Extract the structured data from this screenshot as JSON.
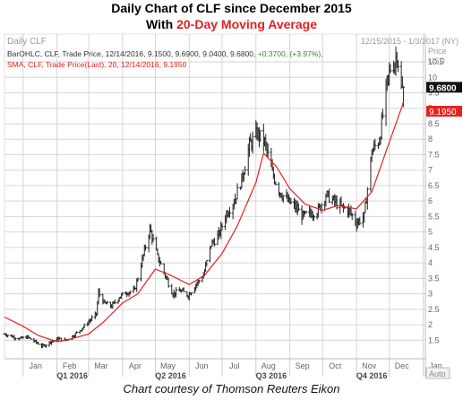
{
  "title": {
    "line1": "Daily Chart of CLF since December 2015",
    "line2_prefix": "With ",
    "line2_highlight": "20-Day Moving Average"
  },
  "caption": "Chart courtesy of Thomson Reuters Eikon",
  "chart_header": {
    "name": "Daily CLF",
    "date_range": "12/15/2015 - 1/3/2017 (NY)",
    "price_axis_label_1": "Price",
    "price_axis_label_2": "USD",
    "bar_legend_text": "BarOHLC, CLF, Trade Price, 12/14/2016, 9.1500, 9.6900, 9.0400, 9.6800, ",
    "bar_legend_change": "+0.3700, (+3.97%),",
    "sma_legend_text": "SMA, CLF, Trade Price(Last), 20, 12/14/2016, 9.1950",
    "last_price_tag": "9.6800",
    "sma_tag": "9.1950",
    "auto_label": "Auto"
  },
  "colors": {
    "price_bars": "#222222",
    "sma_line": "#e8201c",
    "positive_change": "#2e8b2e",
    "grid": "#d6d6d6",
    "title_highlight": "#e02020"
  },
  "chart_data": {
    "type": "line",
    "title": "Daily Chart of CLF since December 2015",
    "subtitle": "With 20-Day Moving Average",
    "xlabel": "",
    "ylabel": "Price USD",
    "ylim": [
      0.9,
      11.4
    ],
    "y_ticks": [
      1.5,
      2,
      2.5,
      3,
      3.5,
      4,
      4.5,
      5,
      5.5,
      6,
      6.5,
      7,
      7.5,
      8,
      8.5,
      9,
      9.5,
      10,
      10.5
    ],
    "x_month_ticks": [
      {
        "label": "Jan",
        "date": "2016-01-01"
      },
      {
        "label": "Feb",
        "date": "2016-02-01"
      },
      {
        "label": "Mar",
        "date": "2016-03-01"
      },
      {
        "label": "Apr",
        "date": "2016-04-01"
      },
      {
        "label": "May",
        "date": "2016-05-01"
      },
      {
        "label": "Jun",
        "date": "2016-06-01"
      },
      {
        "label": "Jul",
        "date": "2016-07-01"
      },
      {
        "label": "Aug",
        "date": "2016-08-01"
      },
      {
        "label": "Sep",
        "date": "2016-09-01"
      },
      {
        "label": "Oct",
        "date": "2016-10-01"
      },
      {
        "label": "Nov",
        "date": "2016-11-01"
      },
      {
        "label": "Dec",
        "date": "2016-12-01"
      },
      {
        "label": "Jan",
        "date": "2017-01-01"
      }
    ],
    "x_quarter_labels": [
      {
        "label": "Q1 2016",
        "date": "2016-02-15"
      },
      {
        "label": "Q2 2016",
        "date": "2016-05-15"
      },
      {
        "label": "Q3 2016",
        "date": "2016-08-15"
      },
      {
        "label": "Q4 2016",
        "date": "2016-11-15"
      }
    ],
    "x_start": "2015-12-15",
    "x_end": "2017-01-03",
    "series": [
      {
        "name": "BarOHLC, CLF, Trade Price",
        "style": "ohlc",
        "points": [
          {
            "x": "2015-12-15",
            "y": 1.7
          },
          {
            "x": "2015-12-22",
            "y": 1.62
          },
          {
            "x": "2015-12-29",
            "y": 1.55
          },
          {
            "x": "2016-01-05",
            "y": 1.6
          },
          {
            "x": "2016-01-12",
            "y": 1.45
          },
          {
            "x": "2016-01-19",
            "y": 1.3
          },
          {
            "x": "2016-01-26",
            "y": 1.45
          },
          {
            "x": "2016-02-02",
            "y": 1.55
          },
          {
            "x": "2016-02-09",
            "y": 1.5
          },
          {
            "x": "2016-02-16",
            "y": 1.65
          },
          {
            "x": "2016-02-23",
            "y": 1.85
          },
          {
            "x": "2016-03-01",
            "y": 2.1
          },
          {
            "x": "2016-03-08",
            "y": 2.35
          },
          {
            "x": "2016-03-10",
            "y": 3.05
          },
          {
            "x": "2016-03-15",
            "y": 2.7
          },
          {
            "x": "2016-03-22",
            "y": 2.6
          },
          {
            "x": "2016-03-29",
            "y": 2.9
          },
          {
            "x": "2016-04-05",
            "y": 3.05
          },
          {
            "x": "2016-04-12",
            "y": 3.1
          },
          {
            "x": "2016-04-19",
            "y": 4.1
          },
          {
            "x": "2016-04-26",
            "y": 5.1
          },
          {
            "x": "2016-05-03",
            "y": 4.2
          },
          {
            "x": "2016-05-10",
            "y": 3.6
          },
          {
            "x": "2016-05-17",
            "y": 3.0
          },
          {
            "x": "2016-05-24",
            "y": 3.1
          },
          {
            "x": "2016-05-31",
            "y": 2.95
          },
          {
            "x": "2016-06-07",
            "y": 3.3
          },
          {
            "x": "2016-06-14",
            "y": 3.6
          },
          {
            "x": "2016-06-21",
            "y": 4.6
          },
          {
            "x": "2016-06-28",
            "y": 4.9
          },
          {
            "x": "2016-07-05",
            "y": 5.6
          },
          {
            "x": "2016-07-12",
            "y": 6.0
          },
          {
            "x": "2016-07-19",
            "y": 6.7
          },
          {
            "x": "2016-07-26",
            "y": 7.8
          },
          {
            "x": "2016-08-02",
            "y": 8.2
          },
          {
            "x": "2016-08-09",
            "y": 7.9
          },
          {
            "x": "2016-08-16",
            "y": 6.9
          },
          {
            "x": "2016-08-23",
            "y": 6.3
          },
          {
            "x": "2016-08-30",
            "y": 6.0
          },
          {
            "x": "2016-09-06",
            "y": 5.8
          },
          {
            "x": "2016-09-13",
            "y": 5.5
          },
          {
            "x": "2016-09-20",
            "y": 5.6
          },
          {
            "x": "2016-09-27",
            "y": 5.7
          },
          {
            "x": "2016-10-04",
            "y": 6.2
          },
          {
            "x": "2016-10-11",
            "y": 6.0
          },
          {
            "x": "2016-10-18",
            "y": 5.8
          },
          {
            "x": "2016-10-25",
            "y": 5.7
          },
          {
            "x": "2016-11-01",
            "y": 5.3
          },
          {
            "x": "2016-11-08",
            "y": 5.5
          },
          {
            "x": "2016-11-15",
            "y": 7.6
          },
          {
            "x": "2016-11-22",
            "y": 8.0
          },
          {
            "x": "2016-11-29",
            "y": 9.8
          },
          {
            "x": "2016-12-02",
            "y": 10.3
          },
          {
            "x": "2016-12-06",
            "y": 10.5
          },
          {
            "x": "2016-12-08",
            "y": 10.8
          },
          {
            "x": "2016-12-12",
            "y": 9.6
          },
          {
            "x": "2016-12-14",
            "y": 9.68
          }
        ]
      },
      {
        "name": "SMA, CLF, Trade Price(Last), 20",
        "style": "line",
        "points": [
          {
            "x": "2015-12-15",
            "y": 2.25
          },
          {
            "x": "2016-01-01",
            "y": 1.95
          },
          {
            "x": "2016-01-15",
            "y": 1.65
          },
          {
            "x": "2016-02-01",
            "y": 1.45
          },
          {
            "x": "2016-02-15",
            "y": 1.55
          },
          {
            "x": "2016-03-01",
            "y": 1.7
          },
          {
            "x": "2016-03-15",
            "y": 2.1
          },
          {
            "x": "2016-04-01",
            "y": 2.7
          },
          {
            "x": "2016-04-15",
            "y": 3.0
          },
          {
            "x": "2016-05-01",
            "y": 3.8
          },
          {
            "x": "2016-05-15",
            "y": 3.6
          },
          {
            "x": "2016-06-01",
            "y": 3.3
          },
          {
            "x": "2016-06-15",
            "y": 3.6
          },
          {
            "x": "2016-07-01",
            "y": 4.3
          },
          {
            "x": "2016-07-15",
            "y": 5.2
          },
          {
            "x": "2016-08-01",
            "y": 6.6
          },
          {
            "x": "2016-08-08",
            "y": 7.55
          },
          {
            "x": "2016-08-20",
            "y": 7.1
          },
          {
            "x": "2016-09-01",
            "y": 6.4
          },
          {
            "x": "2016-09-15",
            "y": 5.9
          },
          {
            "x": "2016-10-01",
            "y": 5.7
          },
          {
            "x": "2016-10-15",
            "y": 5.85
          },
          {
            "x": "2016-11-01",
            "y": 5.75
          },
          {
            "x": "2016-11-15",
            "y": 6.3
          },
          {
            "x": "2016-12-01",
            "y": 7.9
          },
          {
            "x": "2016-12-14",
            "y": 9.195
          }
        ]
      }
    ],
    "last_values": {
      "bar_close": 9.68,
      "sma": 9.195
    }
  }
}
